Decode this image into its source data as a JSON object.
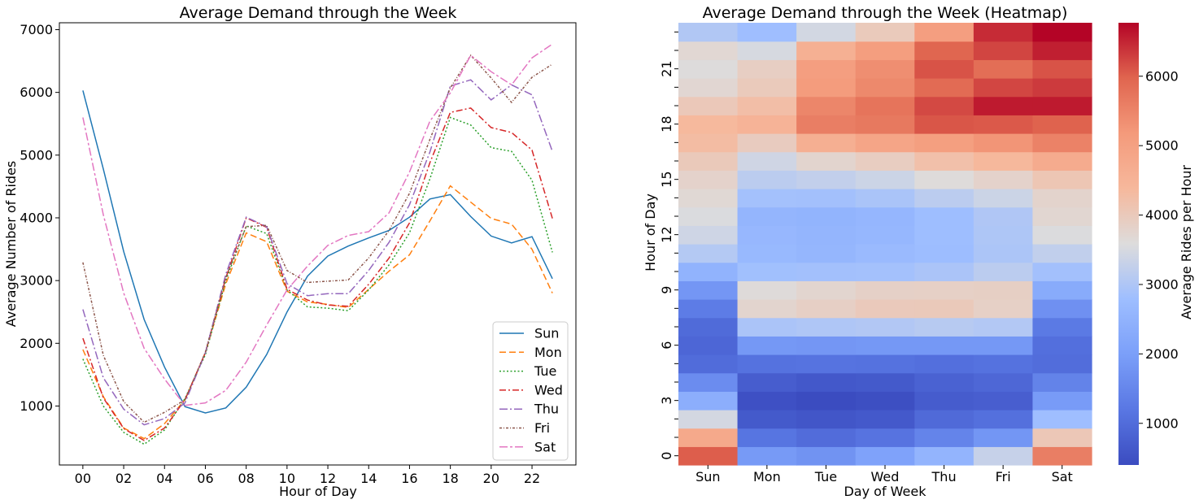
{
  "chart_data": [
    {
      "type": "line",
      "title": "Average Demand through the Week",
      "xlabel": "Hour of Day",
      "ylabel": "Average Number of Rides",
      "xlim": [
        -1.15,
        24.15
      ],
      "ylim": [
        60,
        7110
      ],
      "x": [
        0,
        1,
        2,
        3,
        4,
        5,
        6,
        7,
        8,
        9,
        10,
        11,
        12,
        13,
        14,
        15,
        16,
        17,
        18,
        19,
        20,
        21,
        22,
        23
      ],
      "x_tick_labels": [
        "00",
        "02",
        "04",
        "06",
        "08",
        "10",
        "12",
        "14",
        "16",
        "18",
        "20",
        "22"
      ],
      "x_tick_values": [
        0,
        2,
        4,
        6,
        8,
        10,
        12,
        14,
        16,
        18,
        20,
        22
      ],
      "y_ticks": [
        1000,
        2000,
        3000,
        4000,
        5000,
        6000,
        7000
      ],
      "grid": false,
      "legend_position": "lower-right",
      "series": [
        {
          "name": "Sun",
          "color": "#1f77b4",
          "dash": "",
          "values": [
            6030,
            4780,
            3460,
            2380,
            1620,
            990,
            890,
            970,
            1300,
            1820,
            2500,
            3070,
            3390,
            3550,
            3680,
            3800,
            4010,
            4300,
            4370,
            4020,
            3710,
            3600,
            3700,
            3030
          ]
        },
        {
          "name": "Mon",
          "color": "#ff7f0e",
          "dash": "8,4",
          "values": [
            1900,
            1150,
            650,
            480,
            720,
            1100,
            1850,
            2950,
            3760,
            3620,
            2830,
            2660,
            2620,
            2570,
            2860,
            3150,
            3410,
            3950,
            4510,
            4250,
            3990,
            3900,
            3500,
            2800
          ]
        },
        {
          "name": "Tue",
          "color": "#2ca02c",
          "dash": "2,2.5",
          "values": [
            1750,
            1000,
            580,
            390,
            620,
            1120,
            1820,
            3000,
            3870,
            3750,
            2850,
            2580,
            2560,
            2520,
            2850,
            3250,
            3760,
            4620,
            5600,
            5480,
            5120,
            5060,
            4600,
            3450
          ]
        },
        {
          "name": "Wed",
          "color": "#d62728",
          "dash": "8,3,2,3",
          "values": [
            2080,
            1130,
            640,
            450,
            650,
            1100,
            1850,
            3040,
            4000,
            3850,
            2860,
            2690,
            2610,
            2590,
            2940,
            3360,
            3920,
            4880,
            5680,
            5750,
            5440,
            5360,
            5080,
            3990
          ]
        },
        {
          "name": "Thu",
          "color": "#9467bd",
          "dash": "10,3,2,3",
          "values": [
            2540,
            1450,
            950,
            700,
            800,
            1050,
            1850,
            3100,
            4010,
            3860,
            2950,
            2760,
            2790,
            2790,
            3160,
            3610,
            4210,
            5050,
            6100,
            6200,
            5880,
            6120,
            5960,
            5060
          ]
        },
        {
          "name": "Fri",
          "color": "#8c564b",
          "dash": "3,2,1,2",
          "values": [
            3290,
            1810,
            1070,
            740,
            900,
            1100,
            1860,
            3050,
            3860,
            3880,
            3160,
            2970,
            2990,
            3010,
            3360,
            3800,
            4390,
            5250,
            6070,
            6590,
            6230,
            5840,
            6240,
            6450
          ]
        },
        {
          "name": "Sat",
          "color": "#e377c2",
          "dash": "10,3,3,3",
          "values": [
            5600,
            4050,
            2800,
            1920,
            1430,
            1010,
            1050,
            1250,
            1700,
            2290,
            2850,
            3230,
            3560,
            3720,
            3780,
            4080,
            4730,
            5540,
            5990,
            6590,
            6330,
            6120,
            6550,
            6770
          ]
        }
      ]
    },
    {
      "type": "heatmap",
      "title": "Average Demand through the Week (Heatmap)",
      "xlabel": "Day of Week",
      "ylabel": "Hour of Day",
      "colorbar_label": "Average Rides per Hour",
      "colormap": "coolwarm",
      "vmin": 400,
      "vmax": 6770,
      "colorbar_ticks": [
        1000,
        2000,
        3000,
        4000,
        5000,
        6000
      ],
      "x_categories": [
        "Sun",
        "Mon",
        "Tue",
        "Wed",
        "Thu",
        "Fri",
        "Sat"
      ],
      "y_tick_labels": [
        "0",
        "3",
        "6",
        "9",
        "12",
        "15",
        "18",
        "21"
      ],
      "y_tick_values": [
        0,
        3,
        6,
        9,
        12,
        15,
        18,
        21
      ],
      "hours": [
        0,
        1,
        2,
        3,
        4,
        5,
        6,
        7,
        8,
        9,
        10,
        11,
        12,
        13,
        14,
        15,
        16,
        17,
        18,
        19,
        20,
        21,
        22,
        23
      ],
      "values": [
        [
          6030,
          1900,
          1750,
          2080,
          2540,
          3290,
          5600
        ],
        [
          4780,
          1150,
          1000,
          1130,
          1450,
          1810,
          4050
        ],
        [
          3460,
          650,
          580,
          640,
          950,
          1070,
          2800
        ],
        [
          2380,
          480,
          390,
          450,
          700,
          740,
          1920
        ],
        [
          1620,
          720,
          620,
          650,
          800,
          900,
          1430
        ],
        [
          990,
          1100,
          1120,
          1100,
          1050,
          1100,
          1010
        ],
        [
          890,
          1850,
          1820,
          1850,
          1850,
          1860,
          1050
        ],
        [
          970,
          2950,
          3000,
          3040,
          3100,
          3050,
          1250
        ],
        [
          1300,
          3760,
          3870,
          4000,
          4010,
          3860,
          1700
        ],
        [
          1820,
          3620,
          3750,
          3850,
          3860,
          3880,
          2290
        ],
        [
          2500,
          2830,
          2850,
          2860,
          2950,
          3160,
          2850
        ],
        [
          3070,
          2660,
          2580,
          2690,
          2760,
          2970,
          3230
        ],
        [
          3390,
          2620,
          2560,
          2610,
          2790,
          2990,
          3560
        ],
        [
          3550,
          2570,
          2520,
          2590,
          2790,
          3010,
          3720
        ],
        [
          3680,
          2860,
          2850,
          2940,
          3160,
          3360,
          3780
        ],
        [
          3800,
          3150,
          3250,
          3360,
          3610,
          3800,
          4080
        ],
        [
          4010,
          3410,
          3760,
          3920,
          4210,
          4390,
          4730
        ],
        [
          4300,
          3950,
          4620,
          4880,
          5050,
          5250,
          5540
        ],
        [
          4370,
          4510,
          5600,
          5680,
          6100,
          6070,
          5990
        ],
        [
          4020,
          4250,
          5480,
          5750,
          6200,
          6590,
          6590
        ],
        [
          3710,
          3990,
          5120,
          5440,
          5880,
          6230,
          6330
        ],
        [
          3600,
          3900,
          5060,
          5360,
          6120,
          5840,
          6120
        ],
        [
          3700,
          3500,
          4600,
          5080,
          5960,
          6240,
          6550
        ],
        [
          3030,
          2800,
          3450,
          3990,
          5060,
          6450,
          6770
        ]
      ]
    }
  ]
}
